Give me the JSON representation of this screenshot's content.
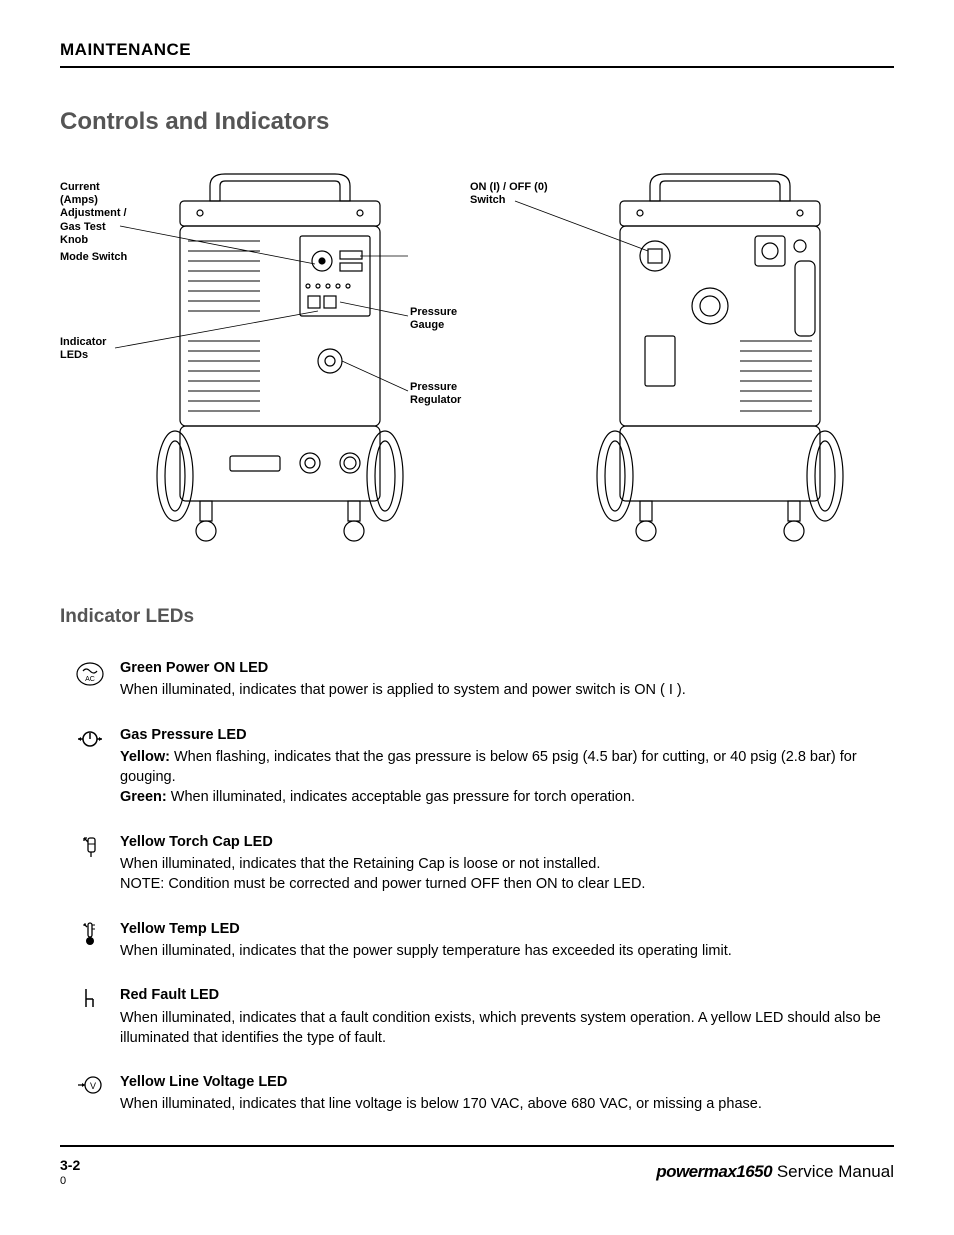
{
  "header": {
    "title": "MAINTENANCE"
  },
  "main": {
    "title": "Controls and Indicators"
  },
  "diagram": {
    "callouts": {
      "knob": "Current\n(Amps)\nAdjustment /\nGas Test\nKnob",
      "mode": "Mode Switch",
      "pressure_gauge": "Pressure\nGauge",
      "pressure_reg": "Pressure\nRegulator",
      "indicator": "Indicator\nLEDs",
      "switch": "ON (I) / OFF (0)\nSwitch"
    }
  },
  "section": {
    "title": "Indicator LEDs"
  },
  "leds": [
    {
      "icon": "power",
      "heading": "Green Power ON LED",
      "desc": "When illuminated, indicates that power is applied to system and power switch is ON ( I )."
    },
    {
      "icon": "gas",
      "heading": "Gas Pressure LED",
      "desc": "<b>Yellow:</b> When flashing, indicates that the gas pressure is below 65 psig (4.5 bar) for cutting, or 40 psig (2.8 bar) for gouging.<br><b>Green:</b> When illuminated, indicates acceptable gas pressure for torch operation."
    },
    {
      "icon": "torch",
      "heading": "Yellow Torch Cap LED",
      "desc": "When illuminated, indicates that the Retaining Cap is loose or not installed.<br>NOTE: Condition must be corrected and power turned OFF then ON to clear LED."
    },
    {
      "icon": "temp",
      "heading": "Yellow Temp LED",
      "desc": "When illuminated, indicates that the power supply temperature has exceeded its operating limit."
    },
    {
      "icon": "fault",
      "heading": "Red Fault LED",
      "desc": "When illuminated, indicates that a fault condition exists, which prevents system operation. A yellow LED should also be illuminated that identifies the type of fault."
    },
    {
      "icon": "voltage",
      "heading": "Yellow Line Voltage LED",
      "desc": "When illuminated, indicates that line voltage is below 170 VAC, above 680 VAC, or missing a phase."
    }
  ],
  "footer": {
    "page": "3-2",
    "brand": "powermax1650",
    "doc": "Service Manual",
    "sub": "0"
  },
  "style": {
    "title_color": "#555555",
    "text_color": "#000000",
    "rule_color": "#000000"
  }
}
